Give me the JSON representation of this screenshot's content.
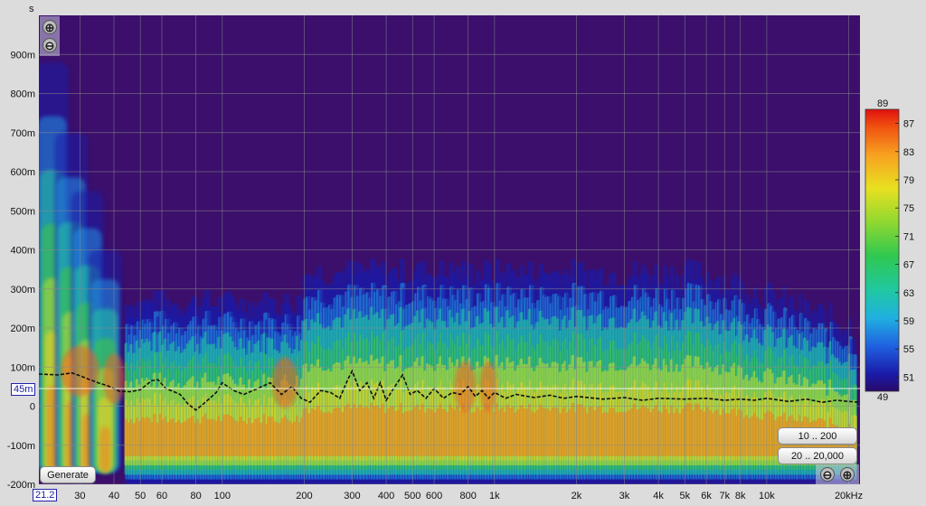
{
  "chart_data": {
    "type": "heatmap",
    "title": "",
    "x_unit_label": "kHz",
    "y_unit_label": "s",
    "x_scale": "log",
    "xlim": [
      21.2,
      22000
    ],
    "ylim": [
      -0.2,
      1.0
    ],
    "x_ticks": [
      "30",
      "40",
      "50",
      "60",
      "80",
      "100",
      "200",
      "300",
      "400",
      "500",
      "600",
      "800",
      "1k",
      "2k",
      "3k",
      "4k",
      "5k",
      "6k",
      "7k",
      "8k",
      "10k",
      "20kHz"
    ],
    "x_tick_values": [
      30,
      40,
      50,
      60,
      80,
      100,
      200,
      300,
      400,
      500,
      600,
      800,
      1000,
      2000,
      3000,
      4000,
      5000,
      6000,
      7000,
      8000,
      10000,
      20000
    ],
    "y_ticks": [
      "900m",
      "800m",
      "700m",
      "600m",
      "500m",
      "400m",
      "300m",
      "200m",
      "100m",
      "0",
      "-100m",
      "-200m"
    ],
    "y_tick_values": [
      0.9,
      0.8,
      0.7,
      0.6,
      0.5,
      0.4,
      0.3,
      0.2,
      0.1,
      0,
      -0.1,
      -0.2
    ],
    "cursor_x_label": "21.2",
    "cursor_y_label": "45m",
    "cursor_y_value": 0.045,
    "colorbar": {
      "top_label": "89",
      "bottom_label": "49",
      "tick_labels": [
        "87",
        "83",
        "79",
        "75",
        "71",
        "67",
        "63",
        "59",
        "55",
        "51"
      ],
      "tick_values": [
        87,
        83,
        79,
        75,
        71,
        67,
        63,
        59,
        55,
        51
      ],
      "range": [
        49,
        89
      ]
    },
    "background_color": "#3b0f6b",
    "energy_time_curve": {
      "name": "",
      "x": [
        21.2,
        25,
        28,
        30,
        32,
        35,
        38,
        42,
        46,
        50,
        55,
        58,
        62,
        66,
        70,
        75,
        80,
        85,
        90,
        95,
        100,
        110,
        120,
        135,
        150,
        165,
        180,
        195,
        210,
        230,
        250,
        270,
        290,
        300,
        320,
        340,
        360,
        380,
        400,
        430,
        460,
        490,
        520,
        560,
        600,
        650,
        700,
        750,
        800,
        850,
        900,
        950,
        1000,
        1100,
        1200,
        1400,
        1600,
        1800,
        2000,
        2500,
        3000,
        3500,
        4000,
        5000,
        6000,
        7000,
        8000,
        9000,
        10000,
        12000,
        14000,
        16000,
        18000,
        20000,
        22000
      ],
      "y": [
        0.082,
        0.08,
        0.085,
        0.078,
        0.07,
        0.06,
        0.052,
        0.038,
        0.037,
        0.042,
        0.065,
        0.068,
        0.045,
        0.038,
        0.03,
        0.005,
        -0.01,
        0.005,
        0.02,
        0.035,
        0.06,
        0.04,
        0.03,
        0.045,
        0.06,
        0.03,
        0.05,
        0.02,
        0.01,
        0.04,
        0.035,
        0.02,
        0.07,
        0.09,
        0.04,
        0.06,
        0.02,
        0.06,
        0.015,
        0.05,
        0.08,
        0.03,
        0.04,
        0.02,
        0.045,
        0.02,
        0.035,
        0.03,
        0.05,
        0.025,
        0.04,
        0.02,
        0.035,
        0.02,
        0.03,
        0.022,
        0.028,
        0.02,
        0.025,
        0.018,
        0.022,
        0.015,
        0.02,
        0.018,
        0.02,
        0.015,
        0.018,
        0.015,
        0.02,
        0.012,
        0.018,
        0.01,
        0.015,
        0.012,
        0.01
      ]
    }
  },
  "buttons": {
    "generate": "Generate",
    "range_1": "10 .. 200",
    "range_2": "20 .. 20,000"
  },
  "zoom": {
    "in_symbol": "⊕",
    "out_symbol": "⊖"
  }
}
